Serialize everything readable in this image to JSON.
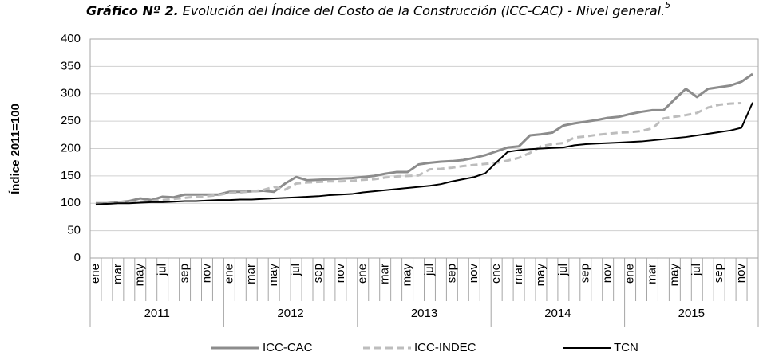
{
  "chart_data": {
    "type": "line",
    "title_prefix": "Gráfico Nº 2.",
    "title": "Evolución del Índice del Costo de la Construcción (ICC-CAC) - Nivel general.",
    "title_footnote": "5",
    "y_label": "Índice 2011=100",
    "categories": [
      "ene",
      null,
      "mar",
      null,
      "may",
      null,
      "jul",
      null,
      "sep",
      null,
      "nov",
      null,
      "ene",
      null,
      "mar",
      null,
      "may",
      null,
      "jul",
      null,
      "sep",
      null,
      "nov",
      null,
      "ene",
      null,
      "mar",
      null,
      "may",
      null,
      "jul",
      null,
      "sep",
      null,
      "nov",
      null,
      "ene",
      null,
      "mar",
      null,
      "may",
      null,
      "jul",
      null,
      "sep",
      null,
      "nov",
      null,
      "ene",
      null,
      "mar",
      null,
      "may",
      null,
      "jul",
      null,
      "sep",
      null,
      "nov",
      null
    ],
    "groups": [
      "2011",
      "2012",
      "2013",
      "2014",
      "2015"
    ],
    "ylim": [
      0,
      400
    ],
    "yticks": [
      0,
      50,
      100,
      150,
      200,
      250,
      300,
      350,
      400
    ],
    "grid": true,
    "legend": "bottom",
    "series": [
      {
        "name": "ICC-CAC",
        "color": "#8c8c8c",
        "dash": false,
        "values": [
          100,
          100,
          102,
          104,
          109,
          106,
          112,
          111,
          116,
          116,
          116,
          116,
          121,
          121,
          122,
          123,
          121,
          136,
          148,
          142,
          143,
          144,
          145,
          146,
          148,
          150,
          154,
          157,
          157,
          171,
          174,
          176,
          177,
          179,
          183,
          188,
          195,
          202,
          204,
          224,
          226,
          229,
          242,
          246,
          249,
          252,
          256,
          258,
          263,
          267,
          270,
          270,
          290,
          309,
          294,
          309,
          312,
          315,
          322,
          336
        ]
      },
      {
        "name": "ICC-INDEC",
        "color": "#bdbdbd",
        "dash": true,
        "values": [
          98,
          99,
          101,
          102,
          103,
          104,
          106,
          108,
          110,
          112,
          113,
          115,
          119,
          120,
          122,
          124,
          130,
          125,
          136,
          138,
          139,
          140,
          140,
          141,
          143,
          144,
          147,
          149,
          150,
          151,
          162,
          163,
          165,
          168,
          170,
          172,
          174,
          178,
          183,
          192,
          204,
          208,
          210,
          220,
          222,
          225,
          227,
          229,
          230,
          232,
          237,
          255,
          258,
          261,
          265,
          275,
          280,
          282,
          283,
          null
        ]
      },
      {
        "name": "TCN",
        "color": "#000000",
        "dash": false,
        "values": [
          98,
          99,
          100,
          100,
          101,
          102,
          102,
          103,
          104,
          104,
          105,
          106,
          106,
          107,
          107,
          108,
          109,
          110,
          111,
          112,
          113,
          115,
          116,
          117,
          120,
          122,
          124,
          126,
          128,
          130,
          132,
          135,
          140,
          144,
          148,
          155,
          175,
          194,
          197,
          199,
          200,
          201,
          202,
          206,
          208,
          209,
          210,
          211,
          212,
          213,
          215,
          217,
          219,
          221,
          224,
          227,
          230,
          233,
          238,
          284
        ]
      }
    ]
  }
}
